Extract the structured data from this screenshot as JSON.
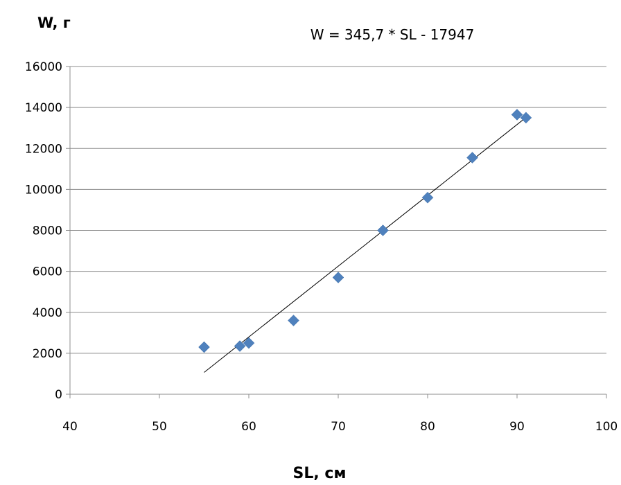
{
  "chart_data": {
    "type": "scatter",
    "ylabel": "W, г",
    "xlabel": "SL, см",
    "annotation": "W = 345,7 * SL - 17947",
    "xlim": [
      40,
      100
    ],
    "ylim": [
      0,
      16000
    ],
    "x_ticks": [
      40,
      50,
      60,
      70,
      80,
      90,
      100
    ],
    "y_ticks": [
      0,
      2000,
      4000,
      6000,
      8000,
      10000,
      12000,
      14000,
      16000
    ],
    "grid": "horizontal",
    "marker": "diamond",
    "marker_color": "#4f81bd",
    "series": [
      {
        "x": [
          55,
          59,
          60,
          65,
          70,
          75,
          80,
          85,
          90,
          91
        ],
        "y": [
          2300,
          2350,
          2500,
          3600,
          5700,
          8000,
          9600,
          11550,
          13650,
          13500
        ]
      }
    ],
    "trendline": {
      "slope": 345.7,
      "intercept": -17947,
      "x_range": [
        55,
        91
      ]
    }
  }
}
